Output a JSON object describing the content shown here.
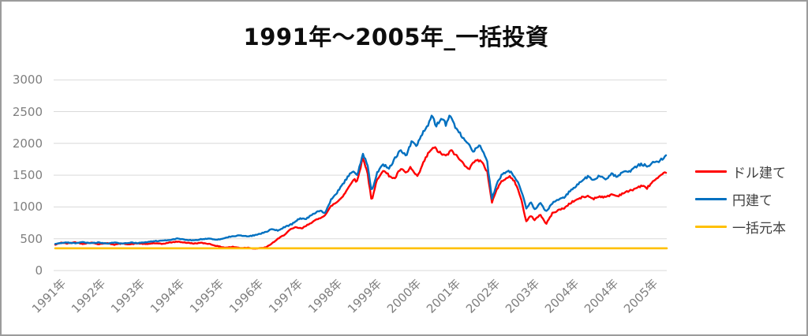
{
  "title": "1991年～2005年_一括投資",
  "window": {
    "background": "#ffffff",
    "border_color": "#9b9b9b"
  },
  "chart_data": {
    "type": "line",
    "title": "1991年～2005年_一括投資",
    "legend_position": "right",
    "grid": "horizontal",
    "gridline_color": "#d9d9d9",
    "axis_label_color": "#7f7f7f",
    "x_axis": {
      "labels": [
        "1991年",
        "1992年",
        "1993年",
        "1994年",
        "1995年",
        "1996年",
        "1997年",
        "1998年",
        "1999年",
        "2000年",
        "2001年",
        "2002年",
        "2003年",
        "2004年",
        "2004年",
        "2005年"
      ],
      "note": "series point x values are axis tick indices: 0 = 1991年 tick, one unit per label; data extends to x = 15.5"
    },
    "y_axis": {
      "ticks": [
        0,
        500,
        1000,
        1500,
        2000,
        2500,
        3000
      ],
      "ylim": [
        0,
        3000
      ]
    },
    "noise": {
      "amplitude_fraction": 0.012,
      "seed": 42,
      "step": 0.03
    },
    "series": [
      {
        "name": "ドル建て",
        "color": "#ff0000",
        "noisy": true,
        "points": [
          [
            0,
            405
          ],
          [
            0.15,
            440
          ],
          [
            0.3,
            425
          ],
          [
            0.5,
            445
          ],
          [
            0.7,
            420
          ],
          [
            0.9,
            440
          ],
          [
            1.1,
            415
          ],
          [
            1.3,
            432
          ],
          [
            1.5,
            408
          ],
          [
            1.7,
            425
          ],
          [
            1.9,
            412
          ],
          [
            2.1,
            428
          ],
          [
            2.3,
            415
          ],
          [
            2.5,
            430
          ],
          [
            2.7,
            418
          ],
          [
            2.9,
            440
          ],
          [
            3.1,
            455
          ],
          [
            3.3,
            440
          ],
          [
            3.5,
            425
          ],
          [
            3.7,
            435
          ],
          [
            3.9,
            420
          ],
          [
            4.1,
            385
          ],
          [
            4.3,
            360
          ],
          [
            4.5,
            372
          ],
          [
            4.7,
            355
          ],
          [
            4.9,
            360
          ],
          [
            5.05,
            345
          ],
          [
            5.2,
            352
          ],
          [
            5.35,
            365
          ],
          [
            5.5,
            430
          ],
          [
            5.65,
            500
          ],
          [
            5.8,
            560
          ],
          [
            5.95,
            640
          ],
          [
            6.1,
            680
          ],
          [
            6.25,
            660
          ],
          [
            6.5,
            760
          ],
          [
            6.7,
            820
          ],
          [
            6.85,
            880
          ],
          [
            7.0,
            1020
          ],
          [
            7.15,
            1080
          ],
          [
            7.3,
            1180
          ],
          [
            7.45,
            1320
          ],
          [
            7.55,
            1440
          ],
          [
            7.65,
            1400
          ],
          [
            7.8,
            1780
          ],
          [
            7.92,
            1520
          ],
          [
            8.02,
            1080
          ],
          [
            8.15,
            1420
          ],
          [
            8.3,
            1580
          ],
          [
            8.45,
            1500
          ],
          [
            8.6,
            1440
          ],
          [
            8.75,
            1600
          ],
          [
            8.9,
            1530
          ],
          [
            9.0,
            1620
          ],
          [
            9.18,
            1470
          ],
          [
            9.35,
            1720
          ],
          [
            9.5,
            1890
          ],
          [
            9.62,
            1930
          ],
          [
            9.75,
            1850
          ],
          [
            9.9,
            1800
          ],
          [
            10.05,
            1890
          ],
          [
            10.2,
            1780
          ],
          [
            10.35,
            1680
          ],
          [
            10.5,
            1600
          ],
          [
            10.65,
            1750
          ],
          [
            10.8,
            1710
          ],
          [
            10.95,
            1560
          ],
          [
            11.0,
            1350
          ],
          [
            11.07,
            1075
          ],
          [
            11.2,
            1290
          ],
          [
            11.35,
            1430
          ],
          [
            11.5,
            1480
          ],
          [
            11.65,
            1400
          ],
          [
            11.8,
            1150
          ],
          [
            11.94,
            770
          ],
          [
            12.05,
            860
          ],
          [
            12.15,
            800
          ],
          [
            12.3,
            880
          ],
          [
            12.44,
            730
          ],
          [
            12.6,
            900
          ],
          [
            12.75,
            950
          ],
          [
            12.9,
            980
          ],
          [
            13.05,
            1060
          ],
          [
            13.2,
            1110
          ],
          [
            13.35,
            1150
          ],
          [
            13.5,
            1170
          ],
          [
            13.65,
            1130
          ],
          [
            13.8,
            1170
          ],
          [
            13.95,
            1150
          ],
          [
            14.1,
            1200
          ],
          [
            14.25,
            1170
          ],
          [
            14.4,
            1220
          ],
          [
            14.55,
            1250
          ],
          [
            14.7,
            1290
          ],
          [
            14.85,
            1330
          ],
          [
            15.0,
            1300
          ],
          [
            15.15,
            1400
          ],
          [
            15.3,
            1460
          ],
          [
            15.5,
            1560
          ]
        ]
      },
      {
        "name": "円建て",
        "color": "#0070c0",
        "noisy": true,
        "points": [
          [
            0,
            418
          ],
          [
            0.15,
            432
          ],
          [
            0.3,
            442
          ],
          [
            0.5,
            430
          ],
          [
            0.7,
            445
          ],
          [
            0.9,
            430
          ],
          [
            1.1,
            440
          ],
          [
            1.3,
            425
          ],
          [
            1.5,
            438
          ],
          [
            1.7,
            428
          ],
          [
            1.9,
            440
          ],
          [
            2.1,
            432
          ],
          [
            2.3,
            448
          ],
          [
            2.5,
            460
          ],
          [
            2.7,
            470
          ],
          [
            2.9,
            482
          ],
          [
            3.1,
            502
          ],
          [
            3.3,
            485
          ],
          [
            3.5,
            472
          ],
          [
            3.7,
            492
          ],
          [
            3.9,
            505
          ],
          [
            4.1,
            482
          ],
          [
            4.3,
            515
          ],
          [
            4.5,
            540
          ],
          [
            4.7,
            552
          ],
          [
            4.9,
            535
          ],
          [
            5.1,
            562
          ],
          [
            5.3,
            600
          ],
          [
            5.5,
            650
          ],
          [
            5.65,
            628
          ],
          [
            5.8,
            680
          ],
          [
            6.0,
            730
          ],
          [
            6.2,
            825
          ],
          [
            6.35,
            805
          ],
          [
            6.5,
            880
          ],
          [
            6.7,
            940
          ],
          [
            6.85,
            905
          ],
          [
            7.0,
            1130
          ],
          [
            7.15,
            1230
          ],
          [
            7.3,
            1370
          ],
          [
            7.45,
            1500
          ],
          [
            7.55,
            1560
          ],
          [
            7.65,
            1500
          ],
          [
            7.8,
            1840
          ],
          [
            7.92,
            1640
          ],
          [
            8.02,
            1230
          ],
          [
            8.15,
            1520
          ],
          [
            8.3,
            1680
          ],
          [
            8.45,
            1600
          ],
          [
            8.6,
            1750
          ],
          [
            8.75,
            1900
          ],
          [
            8.9,
            1820
          ],
          [
            9.05,
            2050
          ],
          [
            9.15,
            1950
          ],
          [
            9.3,
            2150
          ],
          [
            9.45,
            2300
          ],
          [
            9.55,
            2480
          ],
          [
            9.65,
            2280
          ],
          [
            9.8,
            2400
          ],
          [
            9.9,
            2300
          ],
          [
            10.0,
            2440
          ],
          [
            10.15,
            2250
          ],
          [
            10.3,
            2120
          ],
          [
            10.45,
            1990
          ],
          [
            10.6,
            1880
          ],
          [
            10.75,
            1960
          ],
          [
            10.85,
            1870
          ],
          [
            10.95,
            1700
          ],
          [
            11.07,
            1120
          ],
          [
            11.2,
            1390
          ],
          [
            11.35,
            1530
          ],
          [
            11.5,
            1570
          ],
          [
            11.65,
            1480
          ],
          [
            11.8,
            1280
          ],
          [
            11.94,
            980
          ],
          [
            12.05,
            1080
          ],
          [
            12.15,
            960
          ],
          [
            12.3,
            1060
          ],
          [
            12.44,
            920
          ],
          [
            12.6,
            1060
          ],
          [
            12.75,
            1120
          ],
          [
            12.9,
            1150
          ],
          [
            13.05,
            1250
          ],
          [
            13.2,
            1330
          ],
          [
            13.35,
            1410
          ],
          [
            13.5,
            1480
          ],
          [
            13.65,
            1420
          ],
          [
            13.8,
            1490
          ],
          [
            13.95,
            1440
          ],
          [
            14.1,
            1520
          ],
          [
            14.25,
            1480
          ],
          [
            14.4,
            1550
          ],
          [
            14.55,
            1560
          ],
          [
            14.7,
            1620
          ],
          [
            14.85,
            1680
          ],
          [
            15.0,
            1640
          ],
          [
            15.15,
            1700
          ],
          [
            15.3,
            1720
          ],
          [
            15.5,
            1810
          ]
        ]
      },
      {
        "name": "一括元本",
        "color": "#ffc000",
        "noisy": false,
        "points": [
          [
            0,
            350
          ],
          [
            15.5,
            350
          ]
        ]
      }
    ]
  }
}
